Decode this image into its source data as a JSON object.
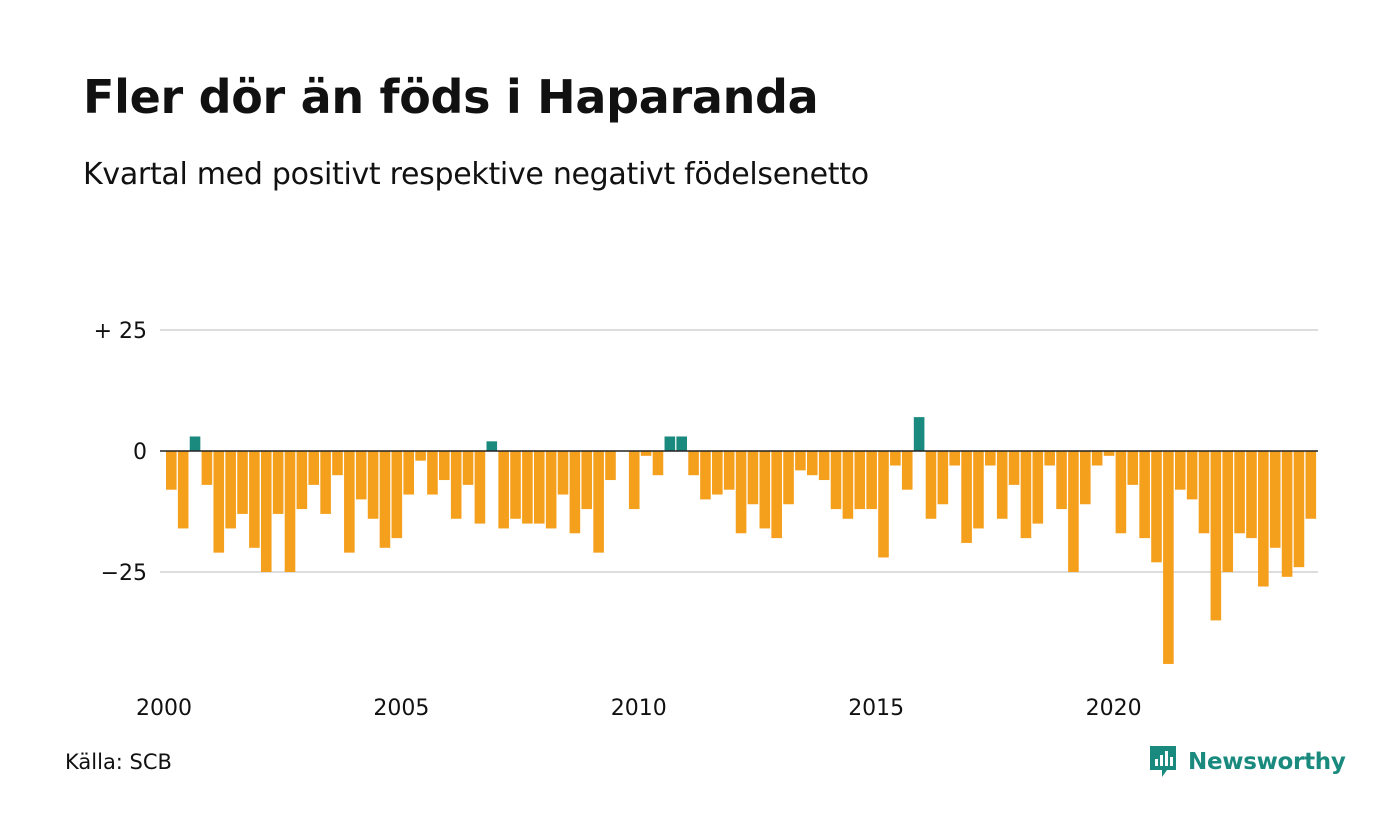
{
  "title": "Fler dör än föds i Haparanda",
  "subtitle": "Kvartal med positivt respektive negativt födelsenetto",
  "source": "Källa: SCB",
  "brand": {
    "name": "Newsworthy",
    "icon": "bar-chart-speech-bubble-icon"
  },
  "colors": {
    "positive": "#1a8a7e",
    "negative": "#f5a01d",
    "grid": "#dddddd",
    "zero_line": "#222222"
  },
  "chart_data": {
    "type": "bar",
    "x_start": "2000 Q1",
    "ylim": [
      -45,
      25
    ],
    "yticks": [
      25,
      0,
      -25
    ],
    "ytick_labels": [
      "+ 25",
      "0",
      "−25"
    ],
    "xticks": [
      "2000",
      "2005",
      "2010",
      "2015",
      "2020"
    ],
    "grid": true,
    "values": [
      -8,
      -16,
      3,
      -7,
      -21,
      -16,
      -13,
      -20,
      -25,
      -13,
      -25,
      -12,
      -7,
      -13,
      -5,
      -21,
      -10,
      -14,
      -20,
      -18,
      -9,
      -2,
      -9,
      -6,
      -14,
      -7,
      -15,
      2,
      -16,
      -14,
      -15,
      -15,
      -16,
      -9,
      -17,
      -12,
      -21,
      -6,
      0,
      -12,
      -1,
      -5,
      3,
      3,
      -5,
      -10,
      -9,
      -8,
      -17,
      -11,
      -16,
      -18,
      -11,
      -4,
      -5,
      -6,
      -12,
      -14,
      -12,
      -12,
      -22,
      -3,
      -8,
      7,
      -14,
      -11,
      -3,
      -19,
      -16,
      -3,
      -14,
      -7,
      -18,
      -15,
      -3,
      -12,
      -25,
      -11,
      -3,
      -1,
      -17,
      -7,
      -18,
      -23,
      -44,
      -8,
      -10,
      -17,
      -35,
      -25,
      -17,
      -18,
      -28,
      -20,
      -26,
      -24,
      -14
    ]
  }
}
